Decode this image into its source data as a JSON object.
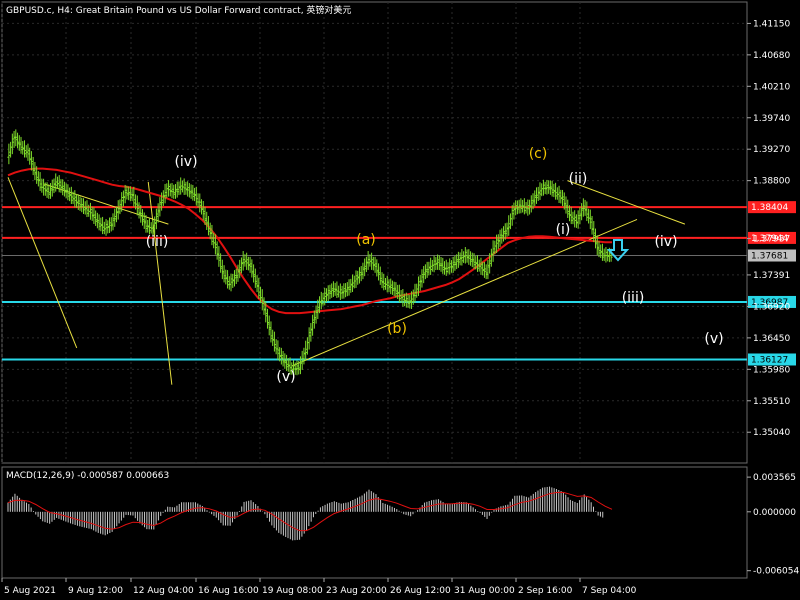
{
  "header": {
    "title": "GBPUSD.c, H4:  Great Britain Pound vs US Dollar Forward contract, 英镑对美元"
  },
  "macd": {
    "label": "MACD(12,26,9) -0.000587 0.000663",
    "ticks": [
      "0.003565",
      "0.000000",
      "-0.006054"
    ],
    "tick_values": [
      0.003565,
      0.0,
      -0.006054
    ]
  },
  "colors": {
    "background": "#000000",
    "grid": "#2a2a2a",
    "candle_up": "#7fdc2b",
    "ma": "#e01010",
    "resistance": "#ff2020",
    "support": "#28d8e8",
    "trend": "#e8e040",
    "label_white": "#ffffff",
    "label_yellow": "#f0c400",
    "macd_hist": "#c8c8c8",
    "macd_signal": "#e01010",
    "arrow": "#3ad0f0"
  },
  "chart_data": {
    "type": "line",
    "title": "GBPUSD.c, H4",
    "y_ticks": [
      "1.41150",
      "1.40680",
      "1.40210",
      "1.39740",
      "1.39270",
      "1.38800",
      "1.37937",
      "1.37391",
      "1.36920",
      "1.36450",
      "1.35980",
      "1.35510",
      "1.35040"
    ],
    "y_tick_values": [
      1.4115,
      1.4068,
      1.4021,
      1.3974,
      1.3927,
      1.388,
      1.37937,
      1.37391,
      1.3692,
      1.3645,
      1.3598,
      1.3551,
      1.3504
    ],
    "ylim": [
      1.3458,
      1.4147
    ],
    "x_ticks": [
      "5 Aug 2021",
      "9 Aug 12:00",
      "12 Aug 04:00",
      "16 Aug 16:00",
      "19 Aug 08:00",
      "23 Aug 20:00",
      "26 Aug 12:00",
      "31 Aug 00:00",
      "2 Sep 16:00",
      "7 Sep 04:00"
    ],
    "horizontal_lines": [
      {
        "name": "resistance-1",
        "value": 1.38404,
        "label": "1.38404",
        "color": "#ff2020"
      },
      {
        "name": "resistance-2",
        "value": 1.37944,
        "label": "1.37944",
        "color": "#ff2020"
      },
      {
        "name": "support-1",
        "value": 1.36987,
        "label": "1.36987",
        "color": "#28d8e8"
      },
      {
        "name": "support-2",
        "value": 1.36127,
        "label": "1.36127",
        "color": "#28d8e8"
      }
    ],
    "current_price": {
      "value": 1.37681,
      "label": "1.37681"
    },
    "wave_labels": [
      {
        "text": "(iv)",
        "color": "white"
      },
      {
        "text": "(iii)",
        "color": "white"
      },
      {
        "text": "(v)",
        "color": "white"
      },
      {
        "text": "(a)",
        "color": "yellow"
      },
      {
        "text": "(b)",
        "color": "yellow"
      },
      {
        "text": "(c)",
        "color": "yellow"
      },
      {
        "text": "(ii)",
        "color": "white"
      },
      {
        "text": "(i)",
        "color": "white"
      },
      {
        "text": "(iv)",
        "color": "white"
      },
      {
        "text": "(iii)",
        "color": "white"
      },
      {
        "text": "(v)",
        "color": "white"
      }
    ],
    "price_series": [
      1.3915,
      1.3945,
      1.393,
      1.392,
      1.389,
      1.387,
      1.3862,
      1.3878,
      1.3868,
      1.3858,
      1.3848,
      1.384,
      1.3832,
      1.3818,
      1.3808,
      1.3815,
      1.3838,
      1.3862,
      1.3858,
      1.3832,
      1.3812,
      1.3808,
      1.3845,
      1.3868,
      1.3862,
      1.3872,
      1.3866,
      1.3858,
      1.3838,
      1.3808,
      1.378,
      1.3742,
      1.3725,
      1.3738,
      1.3762,
      1.3752,
      1.3722,
      1.3688,
      1.3648,
      1.3622,
      1.3608,
      1.3598,
      1.36,
      1.3628,
      1.3668,
      1.3698,
      1.371,
      1.3718,
      1.3712,
      1.3718,
      1.373,
      1.3742,
      1.3762,
      1.3752,
      1.3728,
      1.3722,
      1.3715,
      1.3702,
      1.3698,
      1.3718,
      1.3742,
      1.3752,
      1.3758,
      1.3748,
      1.3752,
      1.3762,
      1.3768,
      1.376,
      1.3752,
      1.3742,
      1.3778,
      1.3795,
      1.3808,
      1.3838,
      1.3842,
      1.3838,
      1.3855,
      1.3868,
      1.387,
      1.3862,
      1.3852,
      1.3828,
      1.3818,
      1.3842,
      1.3818,
      1.3778,
      1.3768,
      1.3768
    ],
    "ma_series": [
      1.3888,
      1.3892,
      1.3895,
      1.3897,
      1.3898,
      1.3898,
      1.3897,
      1.3896,
      1.3894,
      1.3892,
      1.3889,
      1.3886,
      1.3883,
      1.388,
      1.3877,
      1.3874,
      1.3872,
      1.3871,
      1.3869,
      1.3866,
      1.3863,
      1.386,
      1.3857,
      1.3853,
      1.3849,
      1.3844,
      1.3838,
      1.383,
      1.3821,
      1.381,
      1.3797,
      1.3782,
      1.3766,
      1.3749,
      1.3733,
      1.3718,
      1.3705,
      1.3695,
      1.3688,
      1.3684,
      1.3682,
      1.3682,
      1.3682,
      1.3683,
      1.3684,
      1.3685,
      1.3686,
      1.3687,
      1.3688,
      1.369,
      1.3692,
      1.3694,
      1.3697,
      1.37,
      1.3702,
      1.3704,
      1.3707,
      1.3709,
      1.3711,
      1.3713,
      1.3715,
      1.3718,
      1.3721,
      1.3724,
      1.3728,
      1.3733,
      1.374,
      1.3747,
      1.3755,
      1.3763,
      1.3771,
      1.3779,
      1.3787,
      1.3791,
      1.3794,
      1.3796,
      1.3797,
      1.3797,
      1.3796,
      1.3795,
      1.3794,
      1.3793,
      1.3792,
      1.3791,
      1.379,
      1.3789,
      1.3788,
      1.3788
    ]
  }
}
